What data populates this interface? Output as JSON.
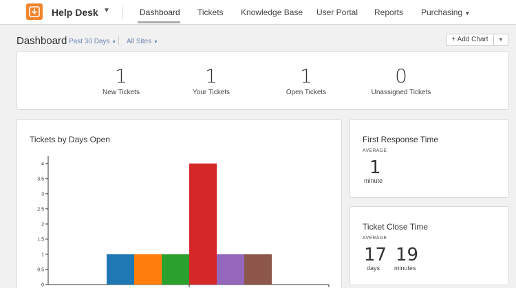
{
  "app": {
    "name": "Help Desk",
    "logo_icon": "ticket-download-icon",
    "brand_color": "#f0852d"
  },
  "nav": {
    "items": [
      {
        "label": "Dashboard",
        "active": true
      },
      {
        "label": "Tickets"
      },
      {
        "label": "Knowledge Base"
      },
      {
        "label": "User Portal"
      },
      {
        "label": "Reports"
      },
      {
        "label": "Purchasing",
        "has_dropdown": true
      }
    ]
  },
  "subheader": {
    "title": "Dashboard",
    "filters": [
      "Past 30 Days",
      "All Sites"
    ],
    "add_chart_label": "+ Add Chart"
  },
  "stats": [
    {
      "value": "1",
      "label": "New Tickets"
    },
    {
      "value": "1",
      "label": "Your Tickets"
    },
    {
      "value": "1",
      "label": "Open Tickets"
    },
    {
      "value": "0",
      "label": "Unassigned Tickets"
    }
  ],
  "first_response": {
    "title": "First Response Time",
    "sub": "AVERAGE",
    "value": "1",
    "unit": "minute"
  },
  "close_time": {
    "title": "Ticket Close Time",
    "sub": "AVERAGE",
    "days_value": "17",
    "days_unit": "days",
    "minutes_value": "19",
    "minutes_unit": "minutes"
  },
  "chart_data": {
    "type": "bar",
    "title": "Tickets by Days Open",
    "ylim": [
      0,
      4.2
    ],
    "yticks": [
      "0",
      "0.5",
      "1",
      "1.5",
      "2",
      "2.5",
      "3",
      "3.5",
      "4"
    ],
    "values": [
      1,
      1,
      1,
      4,
      1,
      1
    ],
    "colors": [
      "#1f77b4",
      "#ff7f0e",
      "#2ca02c",
      "#d62728",
      "#9467bd",
      "#8c564b"
    ],
    "grid": false
  }
}
